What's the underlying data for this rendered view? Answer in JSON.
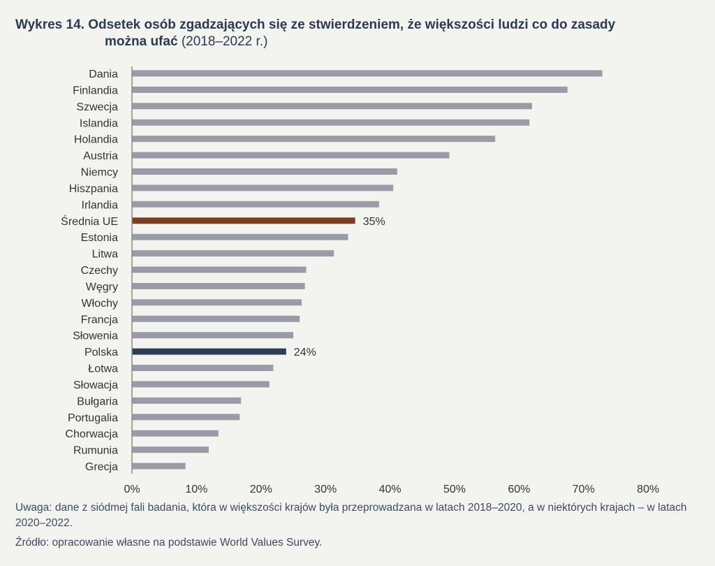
{
  "title": {
    "prefix": "Wykres 14.",
    "main_line1": "Odsetek osób zgadzających się ze stwierdzeniem, że większości ludzi co do zasady",
    "main_line2": "można ufać",
    "period": "(2018–2022 r.)"
  },
  "notes": {
    "remark": "Uwaga: dane z siódmej fali badania, która w większości krajów była przeprowadzana w latach 2018–2020, a w niektórych krajach – w latach 2020–2022.",
    "source": "Źródło: opracowanie własne na podstawie World Values Survey."
  },
  "colors": {
    "default_bar": "#9b9ba8",
    "eu_average_bar": "#7a3f22",
    "poland_bar": "#2e3d55",
    "axis": "#8a8a8a",
    "text": "#333333",
    "background": "#f3f3ef"
  },
  "chart_data": {
    "type": "bar",
    "orientation": "horizontal",
    "title": "Odsetek osób zgadzających się ze stwierdzeniem, że większości ludzi co do zasady można ufać (2018–2022 r.)",
    "xlabel": "",
    "ylabel": "",
    "xlim": [
      0,
      80
    ],
    "x_ticks": [
      0,
      10,
      20,
      30,
      40,
      50,
      60,
      70,
      80
    ],
    "x_tick_labels": [
      "0%",
      "10%",
      "20%",
      "30%",
      "40%",
      "50%",
      "60%",
      "70%",
      "80%"
    ],
    "grid": false,
    "legend": null,
    "categories": [
      "Dania",
      "Finlandia",
      "Szwecja",
      "Islandia",
      "Holandia",
      "Austria",
      "Niemcy",
      "Hiszpania",
      "Irlandia",
      "Średnia UE",
      "Estonia",
      "Litwa",
      "Czechy",
      "Węgry",
      "Włochy",
      "Francja",
      "Słowenia",
      "Polska",
      "Łotwa",
      "Słowacja",
      "Bułgaria",
      "Portugalia",
      "Chorwacja",
      "Rumunia",
      "Grecja"
    ],
    "values": [
      72.9,
      67.5,
      62.0,
      61.6,
      56.3,
      49.2,
      41.1,
      40.5,
      38.3,
      34.6,
      33.5,
      31.3,
      27.0,
      26.8,
      26.3,
      26.0,
      25.0,
      23.9,
      21.9,
      21.3,
      16.9,
      16.7,
      13.4,
      11.9,
      8.3
    ],
    "highlights": {
      "Średnia UE": {
        "color_key": "eu_average_bar",
        "label": "35%"
      },
      "Polska": {
        "color_key": "poland_bar",
        "label": "24%"
      }
    }
  }
}
